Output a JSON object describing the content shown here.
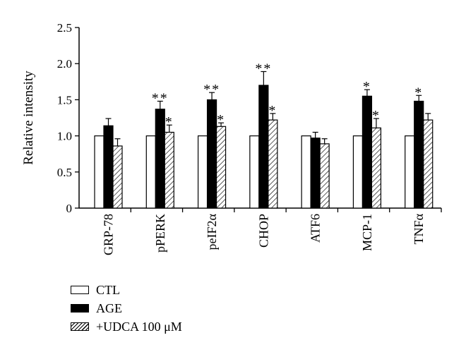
{
  "chart_data": {
    "type": "bar",
    "title": "",
    "xlabel": "",
    "ylabel": "Relative intensity",
    "ylim": [
      0,
      2.5
    ],
    "yticks": [
      "0",
      "0.5",
      "1.0",
      "1.5",
      "2.0",
      "2.5"
    ],
    "categories": [
      "GRP-78",
      "pPERK",
      "peIF2α",
      "CHOP",
      "ATF6",
      "MCP-1",
      "TNFα"
    ],
    "series": [
      {
        "name": "CTL",
        "fill": "white",
        "values": [
          1.0,
          1.0,
          1.0,
          1.0,
          1.0,
          1.0,
          1.0
        ],
        "errors": [
          0,
          0,
          0,
          0,
          0,
          0,
          0
        ],
        "significance": [
          "",
          "",
          "",
          "",
          "",
          "",
          ""
        ]
      },
      {
        "name": "AGE",
        "fill": "black",
        "values": [
          1.14,
          1.37,
          1.5,
          1.7,
          0.97,
          1.55,
          1.48
        ],
        "errors": [
          0.1,
          0.11,
          0.1,
          0.19,
          0.08,
          0.09,
          0.08
        ],
        "significance": [
          "",
          "**",
          "**",
          "**",
          "",
          "*",
          "*"
        ]
      },
      {
        "name": "+UDCA 100 μM",
        "fill": "hatched",
        "values": [
          0.86,
          1.05,
          1.13,
          1.22,
          0.89,
          1.11,
          1.22
        ],
        "errors": [
          0.1,
          0.1,
          0.05,
          0.09,
          0.07,
          0.13,
          0.09
        ],
        "significance": [
          "",
          "*",
          "*",
          "*",
          "",
          "*",
          ""
        ]
      }
    ],
    "legend": "bottom-left"
  }
}
